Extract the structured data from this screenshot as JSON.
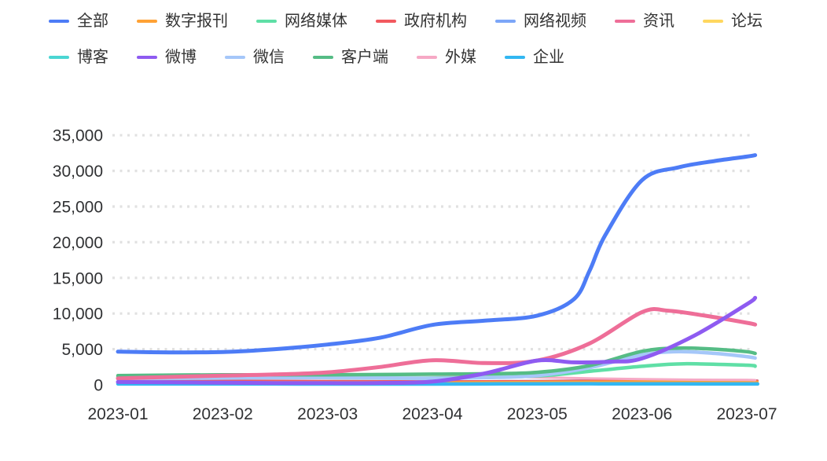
{
  "page": {
    "background": "#ffffff"
  },
  "chart_data": {
    "type": "line",
    "title": "",
    "xlabel": "",
    "ylabel": "",
    "x_axis": {
      "labels": [
        "2023-01",
        "2023-02",
        "2023-03",
        "2023-04",
        "2023-05",
        "2023-06",
        "2023-07"
      ]
    },
    "y_axis": {
      "min": 0,
      "max": 35000,
      "tick_step": 5000,
      "tick_labels": [
        "0",
        "5,000",
        "10,000",
        "15,000",
        "20,000",
        "25,000",
        "30,000",
        "35,000"
      ]
    },
    "grid": {
      "horizontal_dotted": true,
      "color": "#e1e1e1"
    },
    "legend_position": "top",
    "legend_rows": [
      [
        "全部",
        "数字报刊",
        "网络媒体",
        "政府机构",
        "网络视频",
        "资讯",
        "论坛"
      ],
      [
        "博客",
        "微博",
        "微信",
        "客户端",
        "外媒",
        "企业"
      ]
    ],
    "series": [
      {
        "name": "全部",
        "color": "#4D7CF6",
        "line_width": 5,
        "x": [
          0,
          0.5,
          1,
          1.5,
          2,
          2.5,
          3,
          3.5,
          4,
          4.35,
          4.5,
          4.65,
          5,
          5.35,
          5.7,
          6,
          6.08
        ],
        "values": [
          4650,
          4550,
          4600,
          5000,
          5650,
          6600,
          8400,
          9000,
          9700,
          12000,
          16000,
          21000,
          28700,
          30500,
          31400,
          32000,
          32200
        ]
      },
      {
        "name": "数字报刊",
        "color": "#FFA235",
        "line_width": 2.6,
        "x": [
          0,
          1,
          2,
          3,
          4,
          5,
          6,
          6.08
        ],
        "values": [
          350,
          390,
          400,
          360,
          430,
          480,
          450,
          445
        ]
      },
      {
        "name": "网络媒体",
        "color": "#5FDFA6",
        "line_width": 4.5,
        "x": [
          0,
          1,
          2,
          3,
          4,
          4.5,
          5,
          5.4,
          6,
          6.08
        ],
        "values": [
          1100,
          1150,
          1000,
          950,
          1250,
          1900,
          2600,
          2950,
          2750,
          2600
        ]
      },
      {
        "name": "政府机构",
        "color": "#F2595F",
        "line_width": 2.4,
        "x": [
          0,
          1,
          2,
          3,
          4,
          5,
          6,
          6.08
        ],
        "values": [
          550,
          600,
          560,
          510,
          560,
          640,
          620,
          610
        ]
      },
      {
        "name": "网络视频",
        "color": "#7CA6F8",
        "line_width": 2.6,
        "x": [
          0,
          1,
          2,
          3,
          4,
          5,
          6,
          6.08
        ],
        "values": [
          520,
          560,
          520,
          480,
          560,
          680,
          620,
          600
        ]
      },
      {
        "name": "资讯",
        "color": "#EE6E98",
        "line_width": 5,
        "x": [
          0,
          0.5,
          1,
          1.5,
          2,
          2.5,
          3,
          3.5,
          4,
          4.5,
          5,
          5.25,
          5.6,
          6,
          6.08
        ],
        "values": [
          900,
          1100,
          1300,
          1450,
          1750,
          2500,
          3450,
          3050,
          3400,
          5800,
          10200,
          10400,
          9700,
          8700,
          8450
        ]
      },
      {
        "name": "论坛",
        "color": "#FFD75F",
        "line_width": 2.6,
        "x": [
          0,
          1,
          2,
          3,
          4,
          4.5,
          5,
          6,
          6.08
        ],
        "values": [
          280,
          300,
          320,
          290,
          380,
          400,
          330,
          260,
          255
        ]
      },
      {
        "name": "博客",
        "color": "#4AD6D3",
        "line_width": 2.6,
        "x": [
          0,
          1,
          2,
          3,
          4,
          5,
          6,
          6.08
        ],
        "values": [
          210,
          215,
          195,
          175,
          225,
          215,
          195,
          190
        ]
      },
      {
        "name": "微博",
        "color": "#8E5BF1",
        "line_width": 5,
        "x": [
          0,
          0.5,
          1,
          1.5,
          2,
          2.5,
          3,
          3.5,
          4,
          4.35,
          4.7,
          5,
          5.5,
          6,
          6.08
        ],
        "values": [
          400,
          350,
          300,
          250,
          240,
          260,
          450,
          1600,
          3400,
          3150,
          3250,
          3700,
          6900,
          11300,
          12200
        ]
      },
      {
        "name": "微信",
        "color": "#A5C7F9",
        "line_width": 4.5,
        "x": [
          0,
          1,
          2,
          3,
          3.5,
          4,
          4.5,
          5,
          5.35,
          5.7,
          6,
          6.08
        ],
        "values": [
          850,
          950,
          1000,
          900,
          1000,
          1300,
          2400,
          4200,
          4650,
          4400,
          3950,
          3750
        ]
      },
      {
        "name": "客户端",
        "color": "#55BC85",
        "line_width": 4.5,
        "x": [
          0,
          1,
          2,
          3,
          3.5,
          4,
          4.5,
          5,
          5.35,
          5.7,
          6,
          6.08
        ],
        "values": [
          1300,
          1400,
          1400,
          1500,
          1550,
          1750,
          2700,
          4700,
          5150,
          5000,
          4650,
          4400
        ]
      },
      {
        "name": "外媒",
        "color": "#F6A9C5",
        "line_width": 3,
        "x": [
          0,
          0.5,
          1,
          2,
          3,
          3.5,
          4,
          4.5,
          5,
          5.5,
          6,
          6.08
        ],
        "values": [
          1250,
          1350,
          1400,
          1250,
          1400,
          1250,
          1050,
          900,
          800,
          720,
          680,
          660
        ]
      },
      {
        "name": "企业",
        "color": "#32B7F2",
        "line_width": 4.5,
        "x": [
          0,
          1,
          2,
          3,
          4,
          5,
          6,
          6.08
        ],
        "values": [
          130,
          125,
          115,
          105,
          145,
          135,
          125,
          120
        ]
      }
    ],
    "draw_order": [
      "网络视频",
      "政府机构",
      "论坛",
      "数字报刊",
      "博客",
      "企业",
      "外媒",
      "网络媒体",
      "微信",
      "客户端",
      "资讯",
      "微博",
      "全部"
    ]
  }
}
